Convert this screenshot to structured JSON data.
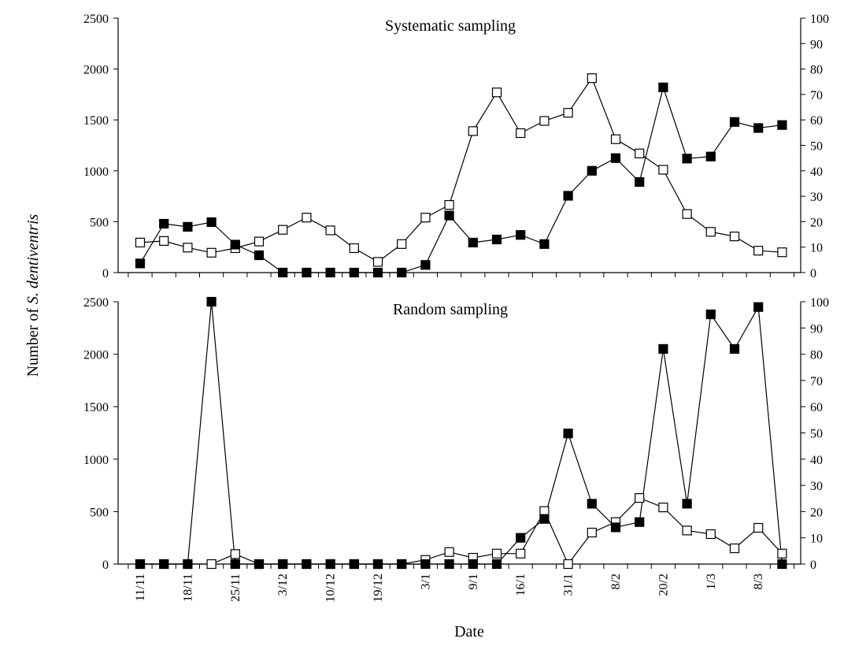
{
  "figure": {
    "ylabel_prefix": "Number of ",
    "ylabel_species": "S. dentiventris",
    "xlabel": "Date",
    "x_tick_labels": [
      "11/11",
      "18/11",
      "25/11",
      "3/12",
      "10/12",
      "19/12",
      "3/1",
      "9/1",
      "16/1",
      "31/1",
      "8/2",
      "20/2",
      "1/3",
      "8/3"
    ]
  },
  "chart_data": [
    {
      "type": "line",
      "title": "Systematic sampling",
      "ylim_left": [
        0,
        2500
      ],
      "ylim_right": [
        0,
        100
      ],
      "left_ticks": [
        "0",
        "500",
        "1000",
        "1500",
        "2000",
        "2500"
      ],
      "right_ticks": [
        "0",
        "10",
        "20",
        "30",
        "40",
        "50",
        "60",
        "70",
        "80",
        "90",
        "100"
      ],
      "series": [
        {
          "marker": "filled-square",
          "axis": "left",
          "values": [
            90,
            480,
            450,
            495,
            275,
            170,
            0,
            0,
            0,
            0,
            0,
            0,
            75,
            560,
            295,
            325,
            370,
            280,
            755,
            1000,
            1125,
            890,
            1820,
            1120,
            1140,
            1480,
            1420,
            1450
          ]
        },
        {
          "marker": "open-square",
          "axis": "left",
          "values": [
            295,
            310,
            245,
            195,
            240,
            305,
            420,
            540,
            415,
            240,
            105,
            280,
            540,
            665,
            1390,
            1770,
            1370,
            1490,
            1570,
            1910,
            1310,
            1170,
            1010,
            575,
            400,
            355,
            215,
            200
          ]
        }
      ]
    },
    {
      "type": "line",
      "title": "Random sampling",
      "ylim_left": [
        0,
        2500
      ],
      "ylim_right": [
        0,
        100
      ],
      "left_ticks": [
        "0",
        "500",
        "1000",
        "1500",
        "2000",
        "2500"
      ],
      "right_ticks": [
        "0",
        "10",
        "20",
        "30",
        "40",
        "50",
        "60",
        "70",
        "80",
        "90",
        "100"
      ],
      "series": [
        {
          "marker": "filled-square",
          "axis": "left",
          "values": [
            0,
            0,
            0,
            2500,
            0,
            0,
            0,
            0,
            0,
            0,
            0,
            0,
            0,
            0,
            0,
            0,
            250,
            430,
            1245,
            575,
            350,
            400,
            2050,
            575,
            2380,
            2050,
            2450,
            0
          ]
        },
        {
          "marker": "open-square",
          "axis": "left",
          "values": [
            0,
            0,
            0,
            0,
            95,
            0,
            0,
            0,
            0,
            0,
            0,
            0,
            40,
            115,
            60,
            100,
            100,
            505,
            0,
            300,
            400,
            630,
            540,
            320,
            285,
            150,
            345,
            100
          ]
        }
      ]
    }
  ]
}
